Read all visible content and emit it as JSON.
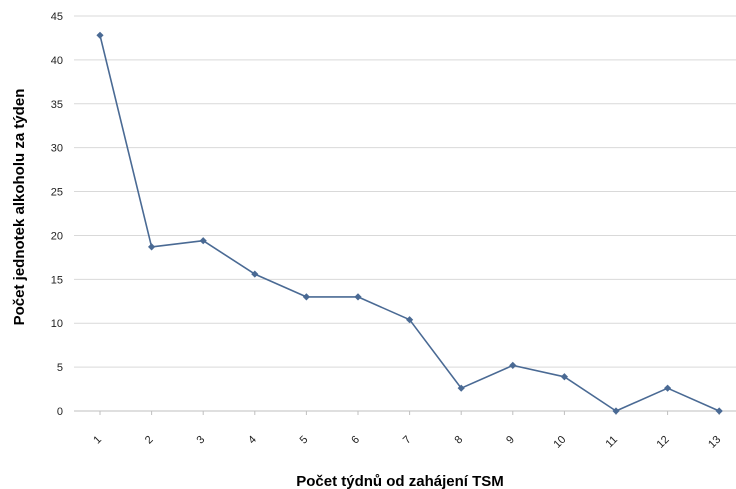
{
  "chart_data": {
    "type": "line",
    "xlabel": "Počet týdnů od zahájení TSM",
    "ylabel": "Počet jednotek alkoholu za týden",
    "categories": [
      "1",
      "2",
      "3",
      "4",
      "5",
      "6",
      "7",
      "8",
      "9",
      "10",
      "11",
      "12",
      "13"
    ],
    "series": [
      {
        "values": [
          42.8,
          18.7,
          19.4,
          15.6,
          13.0,
          13.0,
          10.4,
          2.6,
          5.2,
          3.9,
          0.0,
          2.6,
          0.0
        ]
      }
    ],
    "ylim": [
      0,
      45
    ],
    "yticks": [
      0,
      5,
      10,
      15,
      20,
      25,
      30,
      35,
      40,
      45
    ],
    "grid": true,
    "colors": {
      "line": "#4a6a94",
      "marker": "#4a6a94",
      "grid": "#d9d9d9",
      "axis": "#bfbfbf"
    }
  }
}
